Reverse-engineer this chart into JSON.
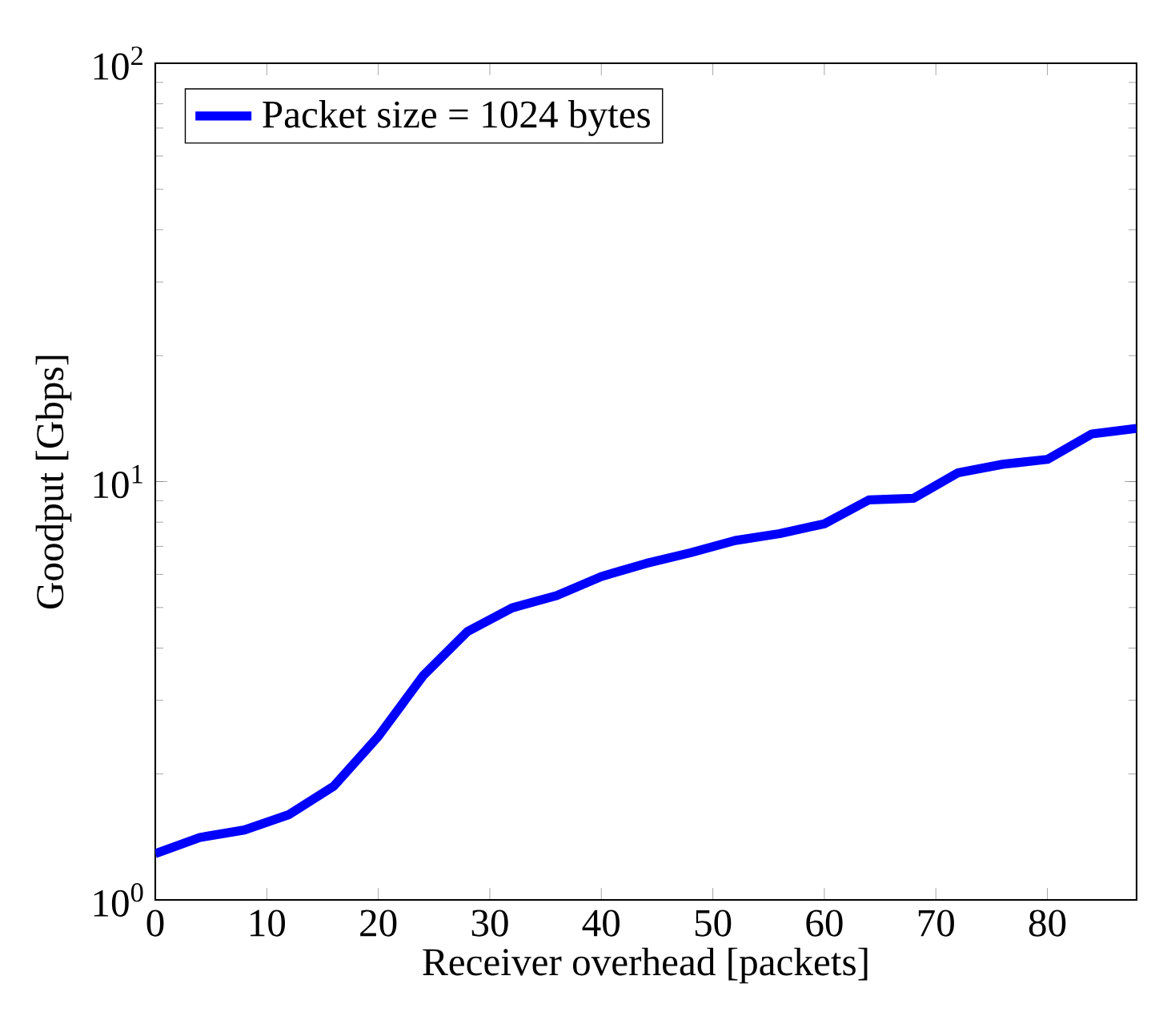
{
  "chart_data": {
    "type": "line",
    "xlabel": "Receiver overhead [packets]",
    "ylabel": "Goodput [Gbps]",
    "x": [
      0,
      4,
      8,
      12,
      16,
      20,
      24,
      28,
      32,
      36,
      40,
      44,
      48,
      52,
      56,
      60,
      64,
      68,
      72,
      76,
      80,
      84,
      88
    ],
    "series": [
      {
        "name": "Packet size = 1024 bytes",
        "color": "#0000ff",
        "values": [
          1.29,
          1.41,
          1.47,
          1.6,
          1.87,
          2.46,
          3.43,
          4.38,
          4.99,
          5.34,
          5.93,
          6.37,
          6.76,
          7.23,
          7.51,
          7.93,
          9.04,
          9.12,
          10.5,
          11.0,
          11.3,
          13.0,
          13.4
        ]
      }
    ],
    "xlim": [
      0,
      88
    ],
    "ylim": [
      1,
      100
    ],
    "xticks": [
      0,
      10,
      20,
      30,
      40,
      50,
      60,
      70,
      80
    ],
    "yticks": [
      {
        "value": 1,
        "label": "10$^{0}$"
      },
      {
        "value": 10,
        "label": "10$^{1}$"
      },
      {
        "value": 100,
        "label": "10$^{2}$"
      }
    ],
    "log": "y",
    "legend": "top left",
    "grid": false,
    "line_style": "solid"
  }
}
